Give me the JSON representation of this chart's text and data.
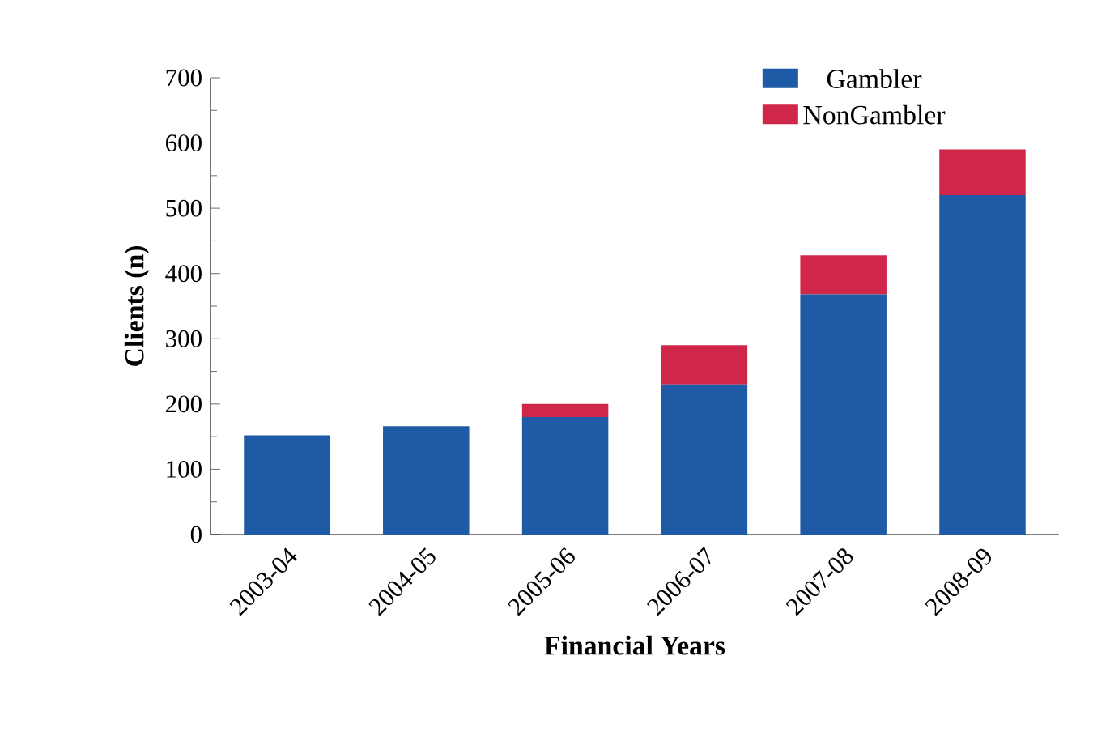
{
  "chart_data": {
    "type": "bar",
    "stacked": true,
    "xlabel": "Financial Years",
    "ylabel": "Clients (n)",
    "categories": [
      "2003-04",
      "2004-05",
      "2005-06",
      "2006-07",
      "2007-08",
      "2008-09"
    ],
    "series": [
      {
        "name": "Gambler",
        "color": "#1f5aa6",
        "values": [
          152,
          166,
          180,
          230,
          368,
          520
        ]
      },
      {
        "name": "NonGambler",
        "color": "#d0264a",
        "values": [
          0,
          0,
          20,
          60,
          60,
          70
        ]
      }
    ],
    "ylim": [
      0,
      700
    ],
    "yticks": [
      0,
      100,
      200,
      300,
      400,
      500,
      600,
      700
    ],
    "legend": "top right",
    "grid": false
  }
}
